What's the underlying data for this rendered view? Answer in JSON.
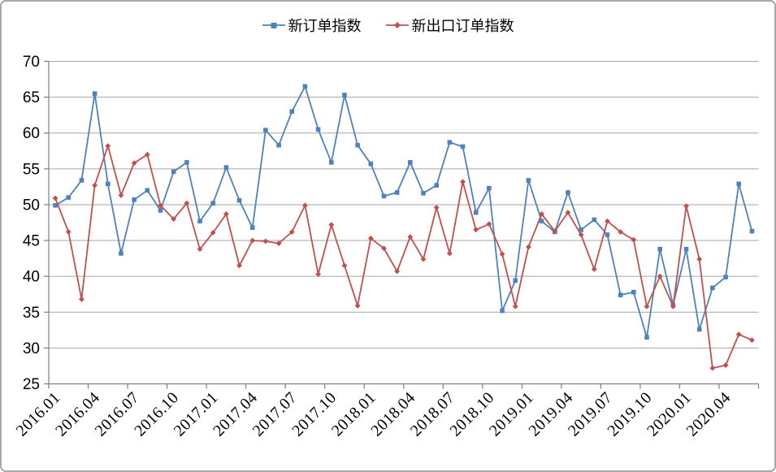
{
  "chart_data": {
    "type": "line",
    "title": "",
    "x": [
      "2016.01",
      "2016.02",
      "2016.03",
      "2016.04",
      "2016.05",
      "2016.06",
      "2016.07",
      "2016.08",
      "2016.09",
      "2016.10",
      "2016.11",
      "2016.12",
      "2017.01",
      "2017.02",
      "2017.03",
      "2017.04",
      "2017.05",
      "2017.06",
      "2017.07",
      "2017.08",
      "2017.09",
      "2017.10",
      "2017.11",
      "2017.12",
      "2018.01",
      "2018.02",
      "2018.03",
      "2018.04",
      "2018.05",
      "2018.06",
      "2018.07",
      "2018.08",
      "2018.09",
      "2018.10",
      "2018.11",
      "2018.12",
      "2019.01",
      "2019.02",
      "2019.03",
      "2019.04",
      "2019.05",
      "2019.06",
      "2019.07",
      "2019.08",
      "2019.09",
      "2019.10",
      "2019.11",
      "2019.12",
      "2020.01",
      "2020.02",
      "2020.03",
      "2020.04",
      "2020.05",
      "2020.06"
    ],
    "x_tick_labels": [
      "2016.01",
      "2016.04",
      "2016.07",
      "2016.10",
      "2017.01",
      "2017.04",
      "2017.07",
      "2017.10",
      "2018.01",
      "2018.04",
      "2018.07",
      "2018.10",
      "2019.01",
      "2019.04",
      "2019.07",
      "2019.10",
      "2020.01",
      "2020.04"
    ],
    "series": [
      {
        "name": "新订单指数",
        "color": "#4F81BD",
        "marker": "square",
        "values": [
          49.9,
          51.0,
          53.4,
          65.5,
          52.9,
          43.2,
          50.7,
          52.0,
          49.2,
          54.6,
          55.9,
          47.7,
          50.2,
          55.2,
          50.6,
          46.8,
          60.4,
          58.3,
          63.0,
          66.5,
          60.5,
          55.9,
          65.3,
          58.3,
          55.7,
          51.2,
          51.7,
          55.9,
          51.6,
          52.7,
          58.7,
          58.1,
          48.9,
          52.3,
          35.2,
          39.4,
          53.4,
          47.7,
          46.2,
          51.7,
          46.5,
          47.9,
          45.8,
          37.4,
          37.8,
          31.5,
          43.8,
          36.0,
          43.8,
          32.6,
          38.4,
          39.9,
          52.9,
          46.3
        ]
      },
      {
        "name": "新出口订单指数",
        "color": "#C0504D",
        "marker": "diamond",
        "values": [
          50.9,
          46.2,
          36.8,
          52.7,
          58.2,
          51.3,
          55.8,
          57.0,
          49.9,
          48.0,
          50.2,
          43.8,
          46.1,
          48.7,
          41.5,
          45.0,
          44.9,
          44.6,
          46.2,
          49.9,
          40.3,
          47.2,
          41.5,
          35.9,
          45.3,
          43.9,
          40.7,
          45.5,
          42.4,
          49.6,
          43.2,
          53.2,
          46.5,
          47.3,
          43.1,
          35.8,
          44.1,
          48.7,
          46.3,
          48.9,
          45.8,
          41.0,
          47.7,
          46.2,
          45.1,
          35.8,
          40.0,
          35.8,
          49.8,
          42.4,
          27.2,
          27.6,
          31.9,
          31.1
        ]
      }
    ],
    "ylim": [
      25,
      70
    ],
    "y_ticks": [
      25,
      30,
      35,
      40,
      45,
      50,
      55,
      60,
      65,
      70
    ],
    "grid": "horizontal-only",
    "legend_position": "top-center"
  },
  "style": {
    "background": "#FFFFFF",
    "frame_border": "#A8A8A8",
    "gridline_color": "#A6A6A6",
    "axis_color": "#7F7F7F",
    "label_color": "#000000",
    "series_blue": "#4F81BD",
    "series_red": "#C0504D"
  }
}
